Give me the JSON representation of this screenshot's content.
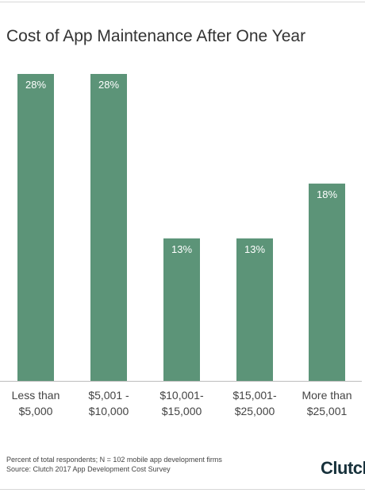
{
  "title": "Cost of App Maintenance After One Year",
  "chart_data": {
    "type": "bar",
    "categories": [
      [
        "Less than",
        "$5,000"
      ],
      [
        "$5,001 -",
        "$10,000"
      ],
      [
        "$10,001-",
        "$15,000"
      ],
      [
        "$15,001-",
        "$25,000"
      ],
      [
        "More than",
        "$25,001"
      ]
    ],
    "values": [
      28,
      28,
      13,
      13,
      18
    ],
    "value_labels": [
      "28%",
      "28%",
      "13%",
      "13%",
      "18%"
    ],
    "unit": "%",
    "ylim": [
      0,
      28
    ],
    "bar_color": "#5c9478",
    "label_color": "#ffffff",
    "grid": false,
    "xlabel": "",
    "ylabel": ""
  },
  "footnote": {
    "line1": "Percent of total respondents; N = 102 mobile app development firms",
    "line2": "Source: Clutch 2017 App Development Cost Survey"
  },
  "logo": {
    "text": "Clutch"
  }
}
